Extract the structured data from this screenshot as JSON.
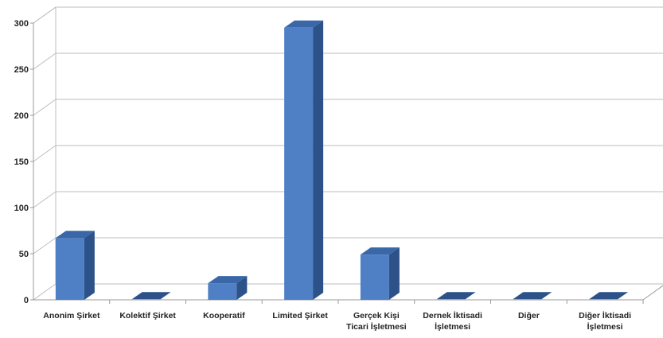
{
  "chart_data": {
    "type": "bar",
    "style": "3d-column",
    "categories": [
      [
        "Anonim Şirket"
      ],
      [
        "Kolektif Şirket"
      ],
      [
        "Kooperatif"
      ],
      [
        "Limited Şirket"
      ],
      [
        "Gerçek Kişi",
        "Ticari İşletmesi"
      ],
      [
        "Dernek İktisadi",
        "İşletmesi"
      ],
      [
        "Diğer"
      ],
      [
        "Diğer İktisadi",
        "İşletmesi"
      ]
    ],
    "values": [
      67,
      0,
      18,
      295,
      49,
      0,
      0,
      0
    ],
    "yticks": [
      0,
      50,
      100,
      150,
      200,
      250,
      300
    ],
    "ylim": [
      0,
      300
    ],
    "grid": true,
    "legend": "none",
    "colors": {
      "bar_front": "#4f7fc4",
      "bar_side": "#2c5289",
      "bar_top": "#3a67a8",
      "grid": "#bdbdbd",
      "axis_text": "#222222"
    }
  }
}
